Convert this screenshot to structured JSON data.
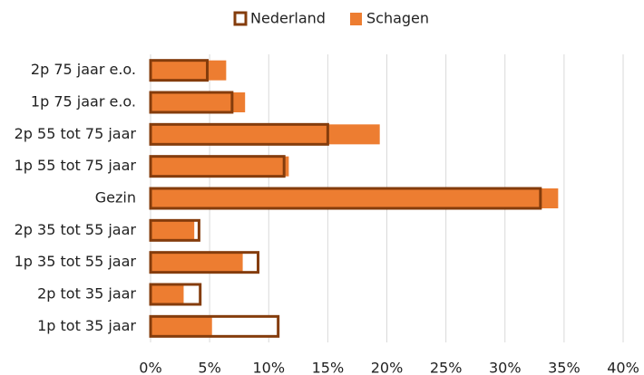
{
  "chart_data": {
    "type": "bar",
    "orientation": "horizontal",
    "categories": [
      "2p 75 jaar e.o.",
      "1p 75 jaar e.o.",
      "2p 55 tot 75 jaar",
      "1p 55 tot 75 jaar",
      "Gezin",
      "2p 35 tot 55 jaar",
      "1p 35 tot 55 jaar",
      "2p tot 35 jaar",
      "1p tot 35 jaar"
    ],
    "series": [
      {
        "name": "Nederland",
        "color": "#843c0c",
        "values": [
          4.8,
          6.9,
          15.0,
          11.3,
          33.0,
          4.1,
          9.1,
          4.2,
          10.8
        ]
      },
      {
        "name": "Schagen",
        "color": "#ed7d31",
        "values": [
          6.4,
          8.0,
          19.4,
          11.7,
          34.5,
          3.7,
          7.8,
          2.8,
          5.2
        ]
      }
    ],
    "xlim": [
      0,
      40
    ],
    "xticks": [
      {
        "value": 0,
        "label": "0%"
      },
      {
        "value": 5,
        "label": "5%"
      },
      {
        "value": 10,
        "label": "10%"
      },
      {
        "value": 15,
        "label": "15%"
      },
      {
        "value": 20,
        "label": "20%"
      },
      {
        "value": 25,
        "label": "25%"
      },
      {
        "value": 30,
        "label": "30%"
      },
      {
        "value": 35,
        "label": "35%"
      },
      {
        "value": 40,
        "label": "40%"
      }
    ],
    "grid": true,
    "legend": "top"
  }
}
